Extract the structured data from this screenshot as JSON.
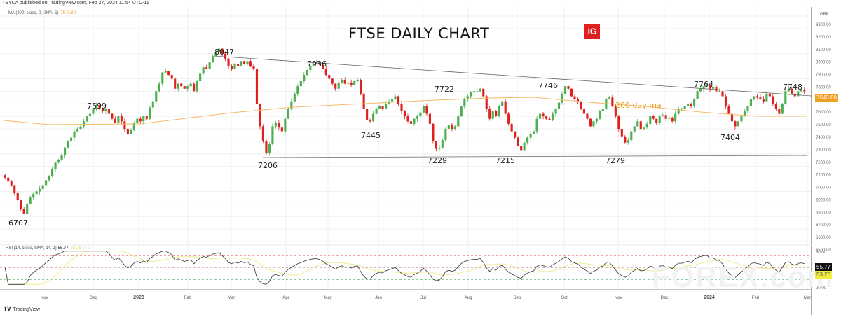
{
  "header": {
    "published": "TSYCA published on TradingView.com, Feb 27, 2024 11:54 UTC-11",
    "ma_label": "MA (200, close, 0, SMA, 5)",
    "ma_value": "7543.80",
    "rsi_label": "RSI (14, close, SMA, 14, 2)",
    "rsi_value": "55.77",
    "rsi_ma_value": "53.26"
  },
  "title": "FTSE DAILY CHART",
  "logo": "IG",
  "footer": {
    "brand": "TradingView",
    "brand_icon": "tv-logo-icon"
  },
  "watermark": "FOREX.com",
  "colors": {
    "up": "#4caf50",
    "down": "#e0201e",
    "ma": "#f5b868",
    "rsi": "#333333",
    "rsi_ma": "#f0ec90",
    "ob": "#f08080",
    "os": "#60c080",
    "price_badge": "#f0a020",
    "rsi_badge": "#111111",
    "rsi_ma_badge": "#f0ec40"
  },
  "chart_data": [
    {
      "type": "candlestick",
      "title": "FTSE DAILY CHART",
      "currency": "GBP",
      "ylim": [
        6500,
        8300
      ],
      "y_ticks": [
        "8300.00",
        "8200.00",
        "8100.00",
        "8000.00",
        "7900.00",
        "7800.00",
        "7700.00",
        "7600.00",
        "7500.00",
        "7400.00",
        "7300.00",
        "7200.00",
        "7100.00",
        "7000.00",
        "6900.00",
        "6800.00",
        "6700.00",
        "6600.00",
        "6500.00"
      ],
      "x_ticks": [
        "Nov",
        "Dec",
        "2023",
        "Feb",
        "Mar",
        "Apr",
        "May",
        "Jun",
        "Jul",
        "Aug",
        "Sep",
        "Oct",
        "Nov",
        "Dec",
        "2024",
        "Feb",
        "Mar"
      ],
      "last_price_badge": "7543.80",
      "ma_annotation": "200 day ma",
      "annotations": [
        {
          "label": "6707",
          "type": "low"
        },
        {
          "label": "7599",
          "type": "high"
        },
        {
          "label": "8047",
          "type": "high"
        },
        {
          "label": "7206",
          "type": "low"
        },
        {
          "label": "7936",
          "type": "high"
        },
        {
          "label": "7445",
          "type": "low"
        },
        {
          "label": "7229",
          "type": "low"
        },
        {
          "label": "7722",
          "type": "high"
        },
        {
          "label": "7215",
          "type": "low"
        },
        {
          "label": "7746",
          "type": "high"
        },
        {
          "label": "7279",
          "type": "low"
        },
        {
          "label": "7764",
          "type": "high"
        },
        {
          "label": "7404",
          "type": "low"
        },
        {
          "label": "7748",
          "type": "high"
        }
      ],
      "trendlines": [
        {
          "name": "resistance",
          "from": 8047,
          "to": 7700
        },
        {
          "name": "support",
          "from": 7206,
          "to": 7215
        }
      ],
      "closes": [
        7010,
        6980,
        6950,
        6890,
        6830,
        6760,
        6720,
        6800,
        6850,
        6880,
        6900,
        6920,
        6950,
        6990,
        7020,
        7080,
        7130,
        7150,
        7190,
        7250,
        7300,
        7330,
        7380,
        7400,
        7420,
        7460,
        7500,
        7520,
        7560,
        7590,
        7560,
        7540,
        7560,
        7520,
        7480,
        7450,
        7500,
        7460,
        7400,
        7360,
        7390,
        7450,
        7480,
        7460,
        7500,
        7480,
        7570,
        7620,
        7700,
        7760,
        7850,
        7860,
        7830,
        7800,
        7720,
        7760,
        7740,
        7720,
        7740,
        7760,
        7700,
        7780,
        7840,
        7890,
        7880,
        7930,
        7980,
        8010,
        8040,
        8000,
        7960,
        7900,
        7880,
        7920,
        7900,
        7940,
        7920,
        7940,
        7900,
        7880,
        7600,
        7420,
        7300,
        7210,
        7280,
        7420,
        7450,
        7410,
        7380,
        7480,
        7560,
        7620,
        7680,
        7740,
        7780,
        7830,
        7870,
        7900,
        7920,
        7930,
        7910,
        7880,
        7830,
        7800,
        7760,
        7720,
        7770,
        7790,
        7760,
        7770,
        7750,
        7780,
        7790,
        7680,
        7560,
        7470,
        7460,
        7520,
        7560,
        7580,
        7560,
        7600,
        7620,
        7640,
        7660,
        7600,
        7540,
        7500,
        7460,
        7440,
        7480,
        7500,
        7530,
        7580,
        7520,
        7440,
        7300,
        7240,
        7250,
        7310,
        7400,
        7430,
        7400,
        7420,
        7500,
        7580,
        7640,
        7660,
        7690,
        7700,
        7700,
        7720,
        7660,
        7560,
        7480,
        7540,
        7500,
        7580,
        7620,
        7520,
        7440,
        7380,
        7330,
        7260,
        7230,
        7290,
        7330,
        7360,
        7380,
        7480,
        7520,
        7500,
        7480,
        7470,
        7520,
        7560,
        7610,
        7680,
        7740,
        7720,
        7660,
        7640,
        7620,
        7560,
        7520,
        7480,
        7420,
        7460,
        7480,
        7540,
        7560,
        7640,
        7650,
        7580,
        7500,
        7400,
        7340,
        7290,
        7310,
        7380,
        7420,
        7460,
        7400,
        7410,
        7440,
        7500,
        7480,
        7450,
        7500,
        7510,
        7480,
        7490,
        7460,
        7520,
        7560,
        7560,
        7580,
        7600,
        7580,
        7640,
        7700,
        7720,
        7740,
        7750,
        7720,
        7730,
        7700,
        7700,
        7660,
        7580,
        7520,
        7460,
        7420,
        7460,
        7500,
        7540,
        7580,
        7640,
        7660,
        7650,
        7640,
        7620,
        7680,
        7660,
        7600,
        7560,
        7520,
        7600,
        7700,
        7720,
        7680,
        7660,
        7700,
        7710,
        7700
      ]
    },
    {
      "type": "line",
      "title": "RSI (14, close, SMA, 14, 2)",
      "ylim": [
        20,
        80
      ],
      "y_ticks": [
        "80.00",
        "20.00"
      ],
      "levels": {
        "overbought": 70,
        "middle": 50,
        "oversold": 30
      },
      "last_values": {
        "rsi": 55.77,
        "rsi_ma": 53.26
      }
    }
  ]
}
